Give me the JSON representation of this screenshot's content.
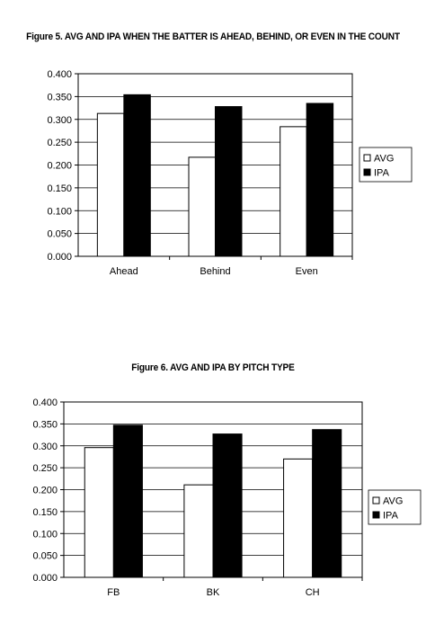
{
  "colors": {
    "bar_avg": "#ffffff",
    "bar_ipa": "#000000",
    "grid": "#000000",
    "page": "#ffffff"
  },
  "figures": [
    {
      "title": "Figure 5. AVG AND IPA WHEN THE BATTER IS AHEAD, BEHIND, OR EVEN IN THE COUNT"
    },
    {
      "title": "Figure 6. AVG AND IPA BY PITCH TYPE"
    }
  ],
  "chart_data": [
    {
      "type": "bar",
      "title": "Figure 5. AVG AND IPA WHEN THE BATTER IS AHEAD, BEHIND, OR EVEN IN THE COUNT",
      "categories": [
        "Ahead",
        "Behind",
        "Even"
      ],
      "series": [
        {
          "name": "AVG",
          "values": [
            0.313,
            0.217,
            0.284
          ]
        },
        {
          "name": "IPA",
          "values": [
            0.354,
            0.328,
            0.335
          ]
        }
      ],
      "ylim": [
        0,
        0.4
      ],
      "yticks": [
        "0.000",
        "0.050",
        "0.100",
        "0.150",
        "0.200",
        "0.250",
        "0.300",
        "0.350",
        "0.400"
      ],
      "grid": true,
      "legend": "right"
    },
    {
      "type": "bar",
      "title": "Figure 6. AVG AND IPA BY PITCH TYPE",
      "categories": [
        "FB",
        "BK",
        "CH"
      ],
      "series": [
        {
          "name": "AVG",
          "values": [
            0.296,
            0.211,
            0.27
          ]
        },
        {
          "name": "IPA",
          "values": [
            0.347,
            0.327,
            0.337
          ]
        }
      ],
      "ylim": [
        0,
        0.4
      ],
      "yticks": [
        "0.000",
        "0.050",
        "0.100",
        "0.150",
        "0.200",
        "0.250",
        "0.300",
        "0.350",
        "0.400"
      ],
      "grid": true,
      "legend": "right"
    }
  ]
}
